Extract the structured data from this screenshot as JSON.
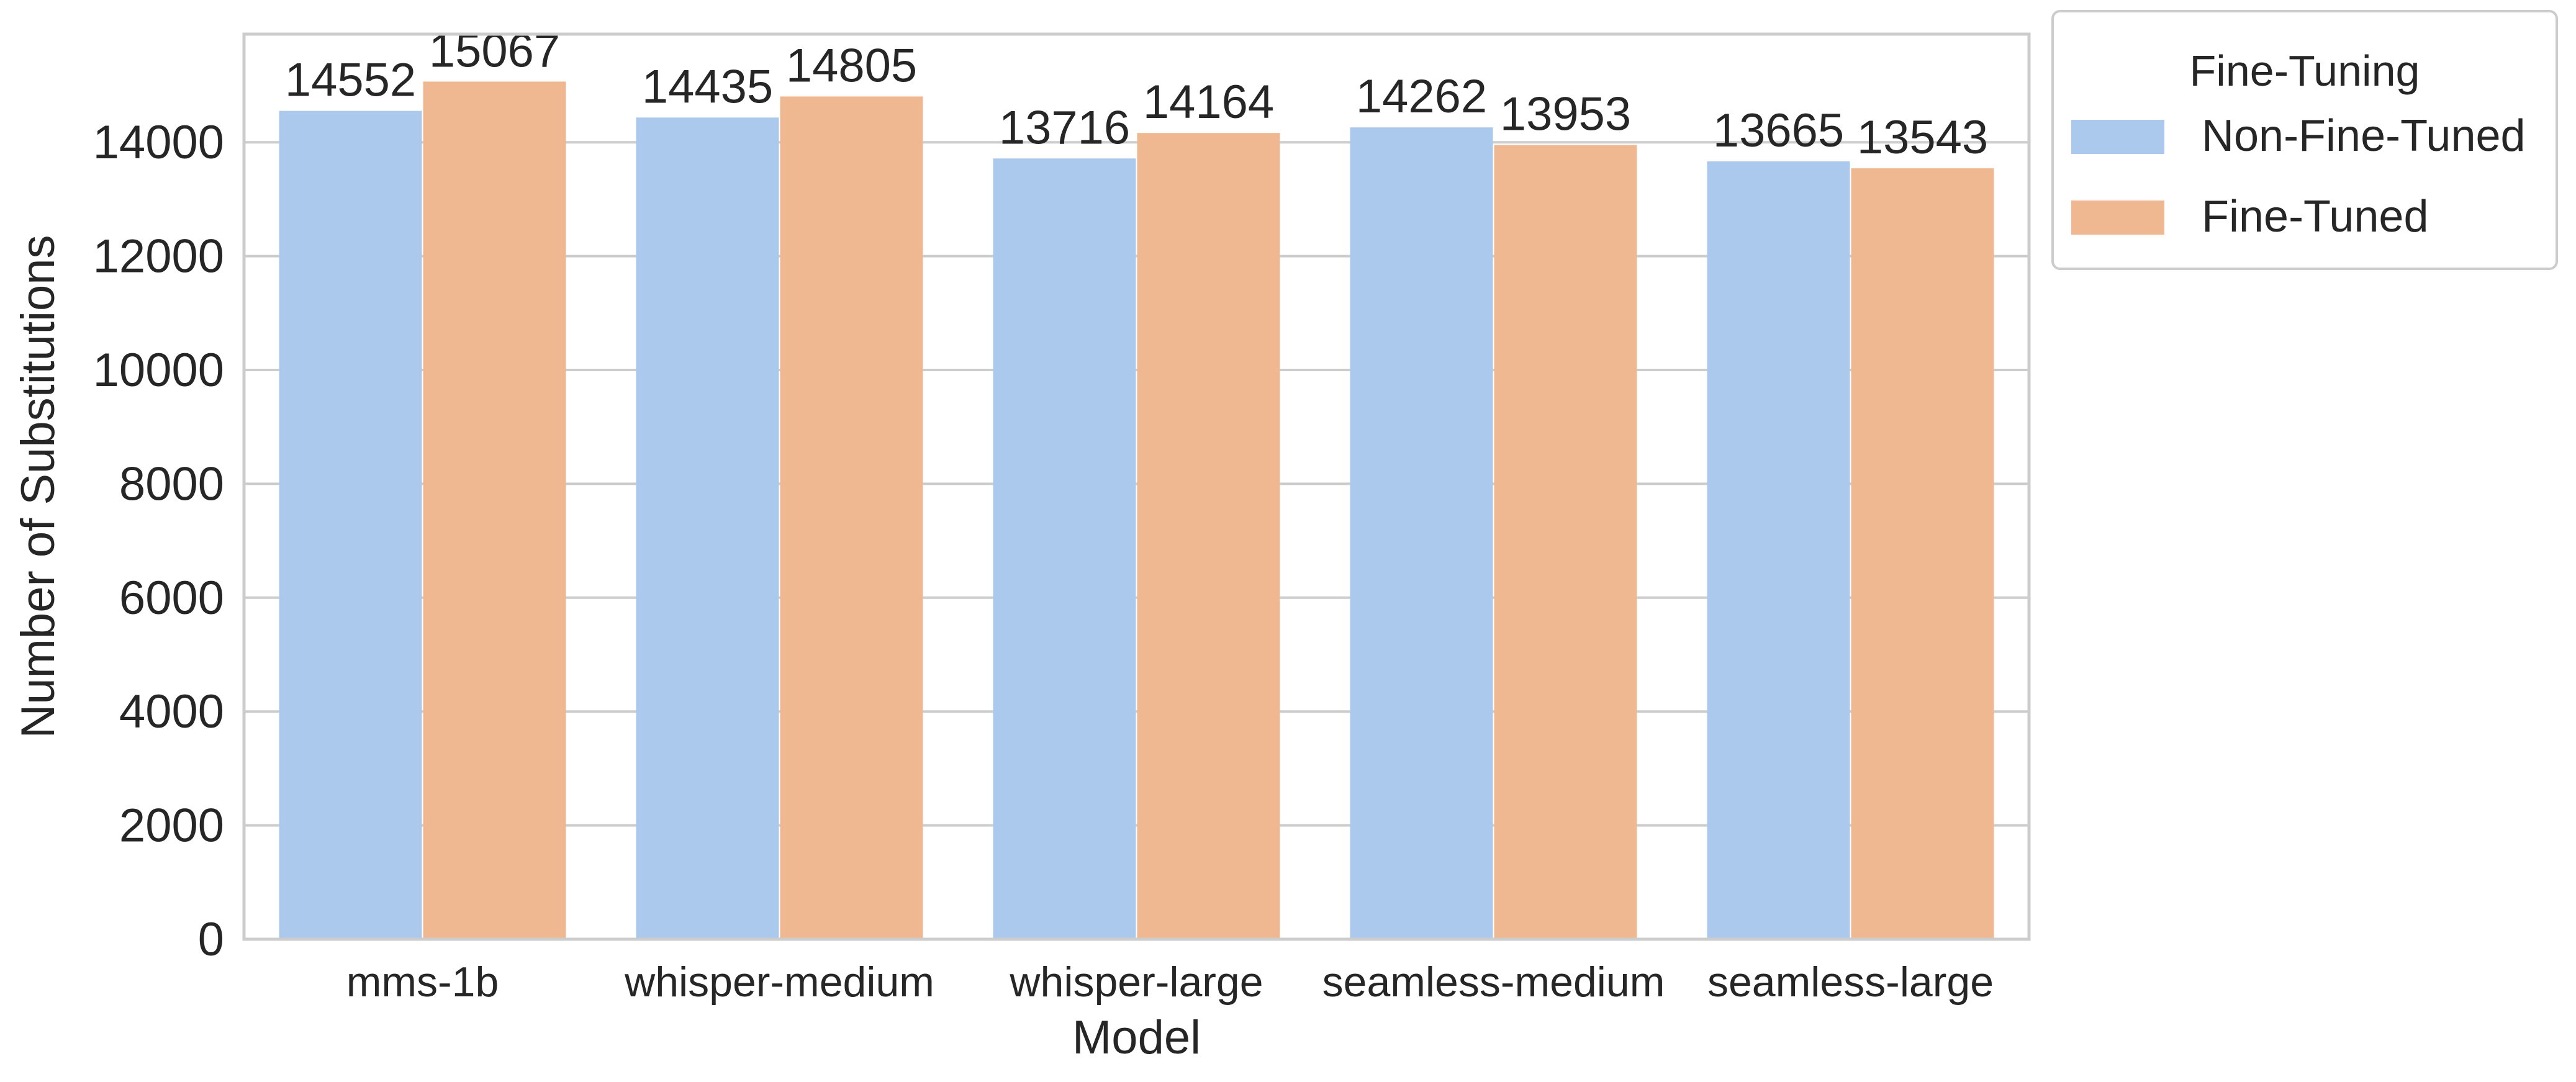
{
  "chart_data": {
    "type": "bar",
    "title": "",
    "xlabel": "Model",
    "ylabel": "Number of Substitutions",
    "categories": [
      "mms-1b",
      "whisper-medium",
      "whisper-large",
      "seamless-medium",
      "seamless-large"
    ],
    "series": [
      {
        "name": "Non-Fine-Tuned",
        "color": "#abc9ed",
        "values": [
          14552,
          14435,
          13716,
          14262,
          13665
        ]
      },
      {
        "name": "Fine-Tuned",
        "color": "#f0b891",
        "values": [
          15067,
          14805,
          14164,
          13953,
          13543
        ]
      }
    ],
    "ylim": [
      0,
      15900
    ],
    "yticks": [
      0,
      2000,
      4000,
      6000,
      8000,
      10000,
      12000,
      14000
    ],
    "grid": true,
    "legend": {
      "title": "Fine-Tuning",
      "placement": "outside-top-right"
    }
  }
}
